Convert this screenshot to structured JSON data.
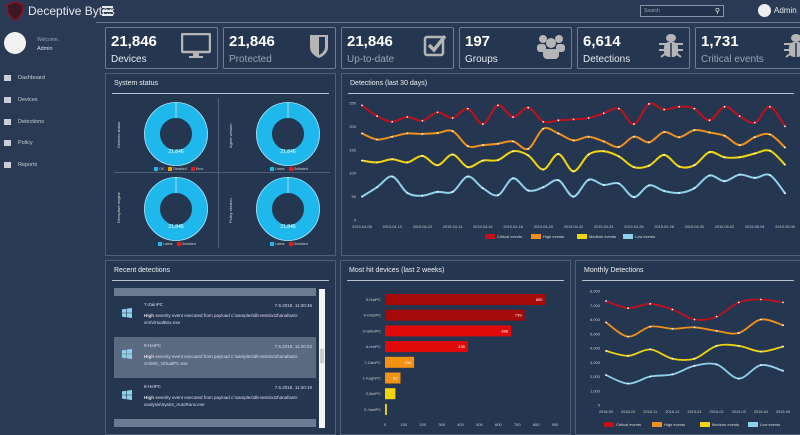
{
  "header": {
    "brand": "Deceptive Bytes",
    "search_placeholder": "Search",
    "user": "Admin",
    "search_icon": "search-icon"
  },
  "sidebar": {
    "welcome": "Welcome,",
    "user": "Admin",
    "items": [
      {
        "label": "Dashboard",
        "icon": "home-icon"
      },
      {
        "label": "Devices",
        "icon": "sitemap-icon"
      },
      {
        "label": "Detections",
        "icon": "bank-icon"
      },
      {
        "label": "Policy",
        "icon": "edit-icon"
      },
      {
        "label": "Reports",
        "icon": "list-icon"
      }
    ]
  },
  "stats": [
    {
      "value": "21,846",
      "label": "Devices",
      "icon": "monitor-icon"
    },
    {
      "value": "21,846",
      "label": "Protected",
      "icon": "shield-icon"
    },
    {
      "value": "21,846",
      "label": "Up-to-date",
      "icon": "checkbox-icon"
    },
    {
      "value": "197",
      "label": "Groups",
      "icon": "users-icon"
    },
    {
      "value": "6,614",
      "label": "Detections",
      "icon": "bug-icon"
    },
    {
      "value": "1,731",
      "label": "Critical events",
      "icon": "bug-icon"
    }
  ],
  "system_status": {
    "title": "System status",
    "donuts": [
      {
        "label": "Devices status",
        "value": "21,846",
        "legend": [
          "OK",
          "Disabled",
          "Error"
        ]
      },
      {
        "label": "Agent version",
        "value": "21,846",
        "legend": [
          "Latest",
          "Outdated"
        ]
      },
      {
        "label": "Deceptive engine",
        "value": "21,846",
        "legend": [
          "Latest",
          "Outdated"
        ]
      },
      {
        "label": "Policy version",
        "value": "21,846",
        "legend": [
          "Latest",
          "Outdated"
        ]
      }
    ],
    "colors": {
      "ok": "#1eb8ec",
      "warn": "#f39c12",
      "error": "#e21b1b"
    }
  },
  "recent": {
    "title": "Recent detections",
    "items": [
      {
        "device": "7-ZainPC",
        "time": "7.5.2019, 11:20:46",
        "severity": "High",
        "message": "severity event executed from payload c:\\samples\\db-tests\\x32\\anal\\anti-vm\\VirtualBox.exe",
        "selected": false
      },
      {
        "device": "5-HaiPC",
        "time": "7.5.2019, 11:20:22",
        "severity": "High",
        "message": "severity event executed from payload c:\\samples\\db-tests\\x32\\anal\\anti-vm\\MS_VirtualPC.exe",
        "selected": true
      },
      {
        "device": "8-HelPC",
        "time": "7.5.2019, 11:20:19",
        "severity": "High",
        "message": "severity event executed from payload c:\\samples\\db-tests\\x32\\anal\\anti-analysis\\Sysint_AutoRuns.exe",
        "selected": false
      }
    ]
  },
  "chart_data": [
    {
      "type": "line",
      "title": "Detections (last 30 days)",
      "ylim": [
        0,
        250
      ],
      "yticks": [
        0,
        50,
        100,
        150,
        200,
        250
      ],
      "grid": false,
      "legend": "bottom",
      "x": [
        "2019-04-08",
        "2019-04-09",
        "2019-04-10",
        "2019-04-11",
        "2019-04-12",
        "2019-04-13",
        "2019-04-14",
        "2019-04-15",
        "2019-04-16",
        "2019-04-17",
        "2019-04-18",
        "2019-04-19",
        "2019-04-20",
        "2019-04-21",
        "2019-04-22",
        "2019-04-23",
        "2019-04-24",
        "2019-04-25",
        "2019-04-26",
        "2019-04-27",
        "2019-04-28",
        "2019-04-29",
        "2019-04-30",
        "2019-05-01",
        "2019-05-02",
        "2019-05-03",
        "2019-05-04",
        "2019-05-05",
        "2019-05-06"
      ],
      "xticks": [
        "2019-04-08",
        "2019-04-10",
        "2019-04-12",
        "2019-04-14",
        "2019-04-16",
        "2019-04-18",
        "2019-04-20",
        "2019-04-22",
        "2019-04-24",
        "2019-04-26",
        "2019-04-28",
        "2019-04-30",
        "2019-05-02",
        "2019-05-04",
        "2019-05-06"
      ],
      "series": [
        {
          "name": "Critical events",
          "color": "#c0101a",
          "values": [
            245,
            222,
            210,
            220,
            212,
            230,
            218,
            238,
            205,
            245,
            220,
            240,
            210,
            213,
            215,
            218,
            228,
            238,
            205,
            248,
            236,
            242,
            238,
            213,
            242,
            222,
            208,
            242,
            200
          ]
        },
        {
          "name": "High events",
          "color": "#f0901a",
          "values": [
            185,
            172,
            178,
            185,
            184,
            186,
            190,
            158,
            160,
            163,
            168,
            152,
            195,
            185,
            170,
            178,
            168,
            156,
            178,
            166,
            188,
            177,
            192,
            187,
            180,
            160,
            177,
            183,
            155
          ]
        },
        {
          "name": "Medium events",
          "color": "#f2d40c",
          "values": [
            127,
            123,
            130,
            123,
            137,
            117,
            140,
            113,
            127,
            128,
            147,
            138,
            108,
            141,
            104,
            140,
            147,
            136,
            113,
            116,
            139,
            114,
            117,
            145,
            134,
            134,
            142,
            148,
            118
          ]
        },
        {
          "name": "Low events",
          "color": "#8fd0ec",
          "values": [
            50,
            70,
            93,
            58,
            52,
            60,
            60,
            93,
            68,
            53,
            89,
            63,
            70,
            85,
            50,
            86,
            75,
            78,
            49,
            74,
            62,
            58,
            68,
            95,
            83,
            97,
            90,
            96,
            57
          ]
        }
      ]
    },
    {
      "type": "bar",
      "orientation": "horizontal",
      "title": "Most hit devices (last 2 weeks)",
      "xlim": [
        0,
        900
      ],
      "xticks": [
        0,
        100,
        200,
        300,
        400,
        500,
        600,
        700,
        800,
        900
      ],
      "categories": [
        "5-HaiPC",
        "4-OdelPC",
        "3-GilhdPC",
        "6-HelPC",
        "7-ZainPC",
        "1-KaghPC",
        "2-BetPC",
        "0-YaelPC"
      ],
      "values": [
        850,
        739,
        668,
        439,
        154,
        82,
        55,
        10
      ],
      "colors": [
        "#a50a0a",
        "#a50a0a",
        "#e00a0a",
        "#e00a0a",
        "#f39212",
        "#f39212",
        "#f2d40c",
        "#f2d40c"
      ],
      "data_labels": [
        "850",
        "739",
        "668",
        "439",
        "154",
        "82",
        "",
        ""
      ]
    },
    {
      "type": "line",
      "title": "Monthly Detections",
      "ylim": [
        0,
        8000
      ],
      "yticks": [
        "0",
        "1,000",
        "2,000",
        "3,000",
        "4,000",
        "5,000",
        "6,000",
        "7,000",
        "8,000"
      ],
      "grid": false,
      "legend": "bottom",
      "x": [
        "2018-09",
        "2018-10",
        "2018-11",
        "2018-12",
        "2019-01",
        "2019-02",
        "2019-03",
        "2019-04",
        "2019-05"
      ],
      "series": [
        {
          "name": "Critical events",
          "color": "#c0101a",
          "values": [
            7300,
            6800,
            7100,
            6700,
            6000,
            6200,
            7200,
            7400,
            7200
          ]
        },
        {
          "name": "High events",
          "color": "#f0901a",
          "values": [
            5800,
            4800,
            5500,
            5350,
            5450,
            5200,
            5050,
            6000,
            5600
          ]
        },
        {
          "name": "Medium events",
          "color": "#f2d40c",
          "values": [
            3800,
            3450,
            3900,
            3250,
            3250,
            4150,
            4150,
            3750,
            4100
          ]
        },
        {
          "name": "Low events",
          "color": "#8fd0ec",
          "values": [
            2100,
            1500,
            2000,
            2150,
            2750,
            2850,
            1850,
            2800,
            2400
          ]
        }
      ]
    }
  ]
}
